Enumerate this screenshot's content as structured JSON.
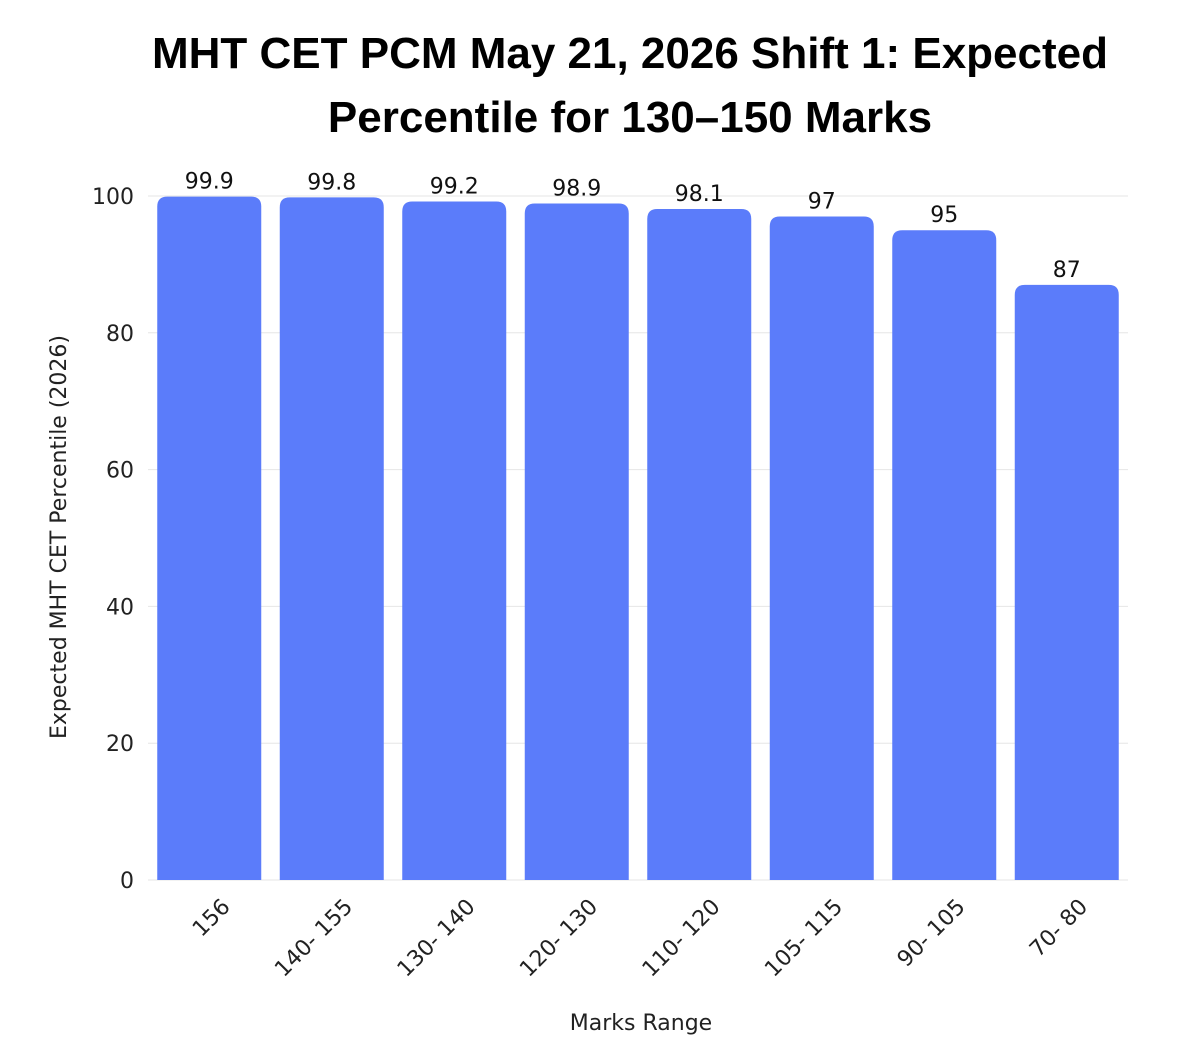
{
  "chart_data": {
    "type": "bar",
    "title": "MHT CET PCM May 21, 2026 Shift 1: Expected Percentile for 130–150 Marks",
    "title_lines": [
      "MHT CET PCM May 21, 2026 Shift 1: Expected",
      "Percentile for 130–150 Marks"
    ],
    "xlabel": "Marks Range",
    "ylabel": "Expected MHT CET Percentile (2026)",
    "categories": [
      "156",
      "140- 155",
      "130- 140",
      "120- 130",
      "110- 120",
      "105- 115",
      "90- 105",
      "70- 80"
    ],
    "values": [
      99.9,
      99.8,
      99.2,
      98.9,
      98.1,
      97,
      95,
      87
    ],
    "value_labels": [
      "99.9",
      "99.8",
      "99.2",
      "98.9",
      "98.1",
      "97",
      "95",
      "87"
    ],
    "yticks": [
      0,
      20,
      40,
      60,
      80,
      100
    ],
    "ylim": [
      0,
      100
    ],
    "grid": true,
    "bar_color": "#5b7cfa",
    "grid_color": "#e6e6e6"
  }
}
